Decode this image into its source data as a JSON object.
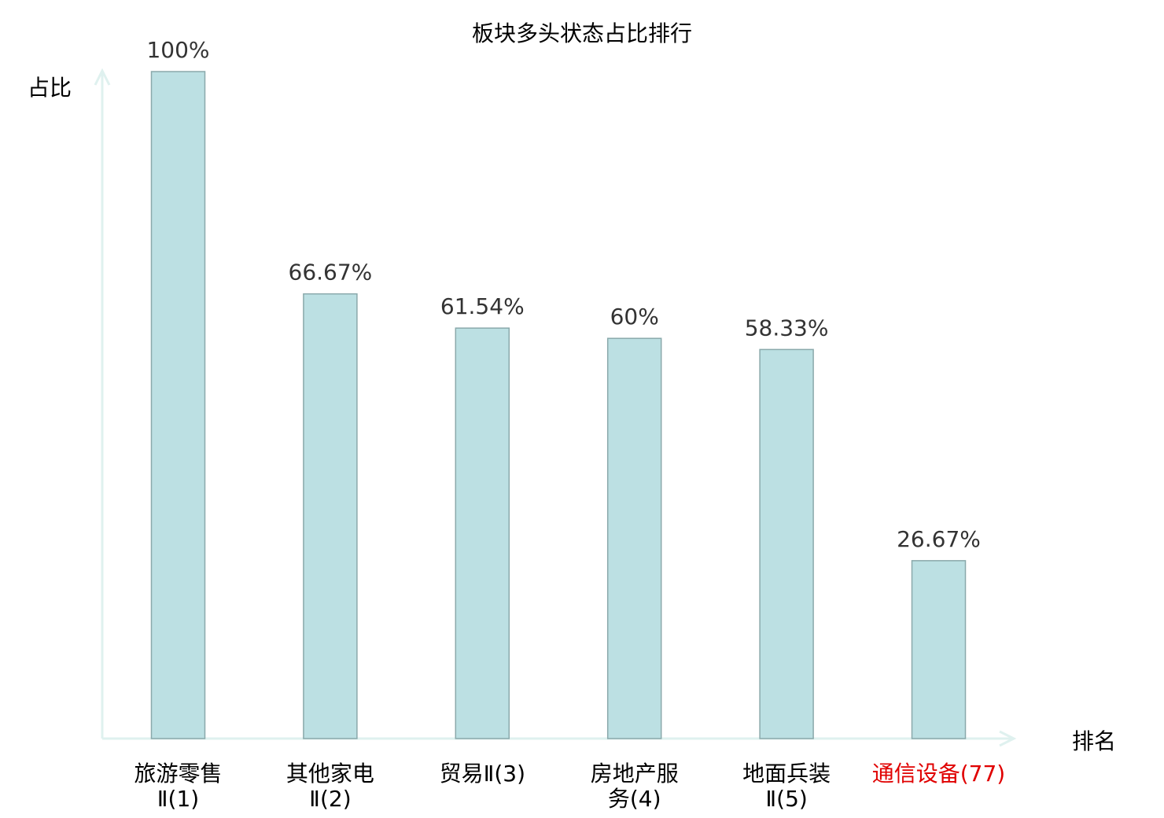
{
  "chart_data": {
    "type": "bar",
    "title": "板块多头状态占比排行",
    "xlabel": "排名",
    "ylabel": "占比",
    "ylim": [
      0,
      100
    ],
    "grid": false,
    "categories": [
      {
        "lines": [
          "旅游零售",
          "Ⅱ(1)"
        ],
        "highlight": false
      },
      {
        "lines": [
          "其他家电",
          "Ⅱ(2)"
        ],
        "highlight": false
      },
      {
        "lines": [
          "贸易Ⅱ(3)"
        ],
        "highlight": false
      },
      {
        "lines": [
          "房地产服",
          "务(4)"
        ],
        "highlight": false
      },
      {
        "lines": [
          "地面兵装",
          "Ⅱ(5)"
        ],
        "highlight": false
      },
      {
        "lines": [
          "通信设备(77)"
        ],
        "highlight": true
      }
    ],
    "values": [
      100,
      66.67,
      61.54,
      60,
      58.33,
      26.67
    ],
    "data_labels": [
      "100%",
      "66.67%",
      "61.54%",
      "60%",
      "58.33%",
      "26.67%"
    ],
    "colors": {
      "bar_fill": "#bce0e3",
      "bar_stroke": "#8aa9ab",
      "axis": "#dff1ef",
      "label": "#000000",
      "value_label": "#333333",
      "highlight_label": "#e00000"
    }
  }
}
